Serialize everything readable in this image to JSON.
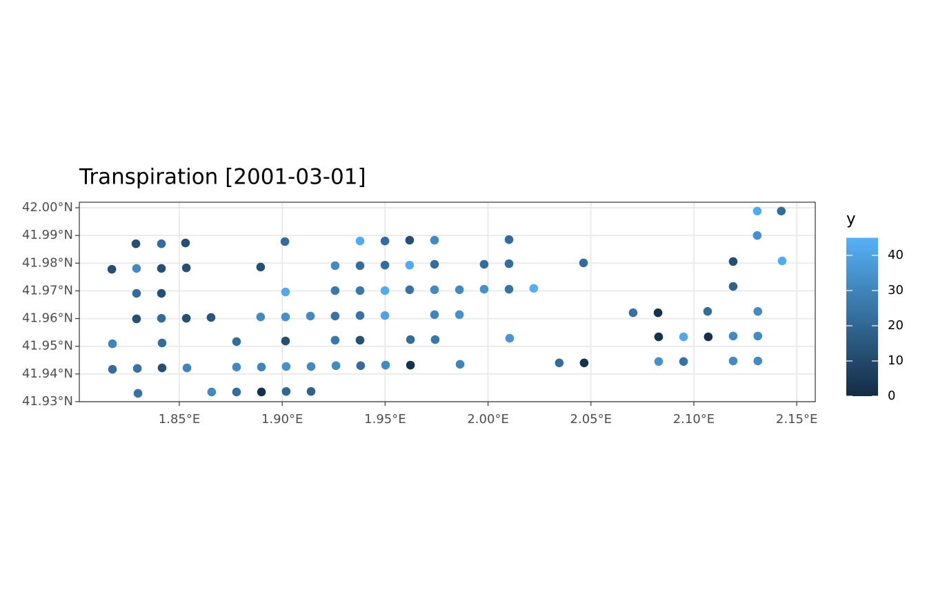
{
  "chart_data": {
    "type": "scatter",
    "title": "Transpiration [2001-03-01]",
    "color_label": "y",
    "color_range": [
      "#132B43",
      "#56B1F7"
    ],
    "color_lim": [
      0,
      45
    ],
    "color_ticks": [
      0,
      10,
      20,
      30,
      40
    ],
    "grid": true,
    "xlim": [
      1.8014,
      2.159
    ],
    "xticks": [
      {
        "value": 1.85,
        "label": "1.85°E"
      },
      {
        "value": 1.9,
        "label": "1.90°E"
      },
      {
        "value": 1.95,
        "label": "1.95°E"
      },
      {
        "value": 2.0,
        "label": "2.00°E"
      },
      {
        "value": 2.05,
        "label": "2.05°E"
      },
      {
        "value": 2.1,
        "label": "2.10°E"
      },
      {
        "value": 2.15,
        "label": "2.15°E"
      }
    ],
    "ylim": [
      41.93,
      42.002
    ],
    "yticks": [
      {
        "value": 41.93,
        "label": "41.93°N"
      },
      {
        "value": 41.94,
        "label": "41.94°N"
      },
      {
        "value": 41.95,
        "label": "41.95°N"
      },
      {
        "value": 41.96,
        "label": "41.96°N"
      },
      {
        "value": 41.97,
        "label": "41.97°N"
      },
      {
        "value": 41.98,
        "label": "41.98°N"
      },
      {
        "value": 41.99,
        "label": "41.99°N"
      },
      {
        "value": 42.0,
        "label": "42.00°N"
      }
    ],
    "x": [
      2.1308,
      2.1425,
      1.8289,
      1.8413,
      1.853,
      1.9013,
      1.9378,
      1.9499,
      1.9619,
      1.974,
      2.0102,
      2.1308,
      1.8172,
      1.8292,
      1.8413,
      1.8534,
      1.8895,
      1.9257,
      1.9378,
      1.9499,
      1.9619,
      1.974,
      1.9981,
      2.0102,
      2.0464,
      2.1191,
      2.1429,
      1.8292,
      1.8413,
      1.9016,
      1.9257,
      1.9378,
      1.9499,
      1.9619,
      1.974,
      1.9861,
      1.9981,
      2.0102,
      2.0222,
      2.1191,
      1.8292,
      1.8413,
      1.8534,
      1.8654,
      1.8895,
      1.9016,
      1.9137,
      1.9257,
      1.9378,
      1.9499,
      1.974,
      1.9861,
      2.0705,
      2.0826,
      2.1067,
      2.1311,
      1.8175,
      1.8416,
      1.8778,
      1.9016,
      1.9257,
      1.9378,
      1.9623,
      1.9743,
      2.0105,
      2.0829,
      2.095,
      2.107,
      2.1191,
      2.1311,
      1.8175,
      1.8296,
      1.8416,
      1.8537,
      1.8778,
      1.8899,
      1.9019,
      1.914,
      1.9261,
      1.9381,
      1.9502,
      1.9623,
      1.9864,
      2.0346,
      2.0467,
      2.0829,
      2.095,
      2.1191,
      2.1311,
      1.8299,
      1.8657,
      1.8778,
      1.8899,
      1.9019,
      1.914
    ],
    "values": [
      41.9988,
      41.9988,
      41.987,
      41.987,
      41.9873,
      41.9878,
      41.988,
      41.988,
      41.9883,
      41.9883,
      41.9885,
      41.99,
      41.9778,
      41.9781,
      41.9781,
      41.9783,
      41.9786,
      41.9791,
      41.9791,
      41.9793,
      41.9793,
      41.9796,
      41.9796,
      41.9798,
      41.9801,
      41.9806,
      41.9808,
      41.9691,
      41.9691,
      41.9696,
      41.9701,
      41.9701,
      41.9701,
      41.9704,
      41.9704,
      41.9704,
      41.9706,
      41.9706,
      41.9709,
      41.9716,
      41.9599,
      41.9601,
      41.9601,
      41.9604,
      41.9606,
      41.9606,
      41.9609,
      41.9609,
      41.9611,
      41.9611,
      41.9614,
      41.9614,
      41.9621,
      41.9621,
      41.9626,
      41.9626,
      41.9509,
      41.9512,
      41.9517,
      41.9519,
      41.9522,
      41.9522,
      41.9524,
      41.9524,
      41.9529,
      41.9534,
      41.9534,
      41.9534,
      41.9537,
      41.9537,
      41.9417,
      41.942,
      41.9422,
      41.9422,
      41.9425,
      41.9425,
      41.9427,
      41.9427,
      41.943,
      41.943,
      41.9432,
      41.9432,
      41.9435,
      41.944,
      41.944,
      41.9445,
      41.9445,
      41.9447,
      41.9447,
      41.933,
      41.9335,
      41.9335,
      41.9335,
      41.9337,
      41.9337
    ],
    "color_values": [
      43,
      22,
      12,
      22,
      12,
      22,
      43,
      22,
      12,
      32,
      22,
      34,
      12,
      32,
      12,
      12,
      12,
      32,
      22,
      22,
      43,
      22,
      22,
      22,
      22,
      12,
      43,
      22,
      12,
      42,
      26,
      26,
      43,
      24,
      32,
      32,
      34,
      24,
      44,
      18,
      12,
      22,
      12,
      14,
      32,
      34,
      32,
      24,
      24,
      40,
      30,
      34,
      24,
      2,
      22,
      32,
      30,
      22,
      22,
      12,
      26,
      12,
      22,
      26,
      36,
      2,
      42,
      2,
      32,
      32,
      22,
      24,
      12,
      30,
      32,
      30,
      34,
      32,
      32,
      22,
      32,
      2,
      30,
      22,
      2,
      34,
      24,
      32,
      32,
      24,
      32,
      22,
      2,
      20,
      18
    ]
  }
}
